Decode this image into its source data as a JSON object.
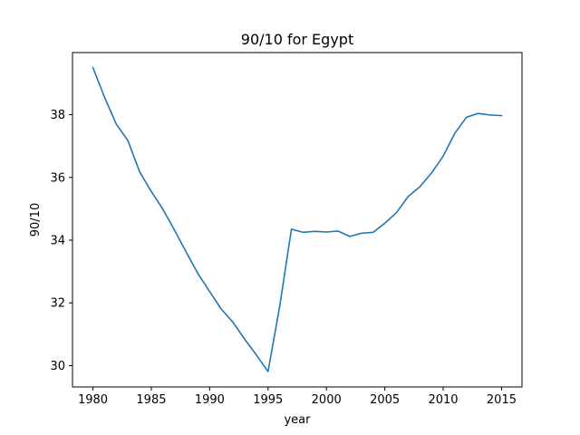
{
  "chart_data": {
    "type": "line",
    "title": "90/10 for Egypt",
    "xlabel": "year",
    "ylabel": "90/10",
    "xlim": [
      1978.25,
      2016.75
    ],
    "ylim": [
      29.32,
      39.98
    ],
    "xticks": [
      1980,
      1985,
      1990,
      1995,
      2000,
      2005,
      2010,
      2015
    ],
    "yticks": [
      30,
      32,
      34,
      36,
      38
    ],
    "grid": false,
    "color": "#1f77b4",
    "series": [
      {
        "x": [
          1980,
          1981,
          1982,
          1983,
          1984,
          1985,
          1986,
          1987,
          1988,
          1989,
          1990,
          1991,
          1992,
          1993,
          1994,
          1995,
          1996,
          1997,
          1998,
          1999,
          2000,
          2001,
          2002,
          2003,
          2004,
          2005,
          2006,
          2007,
          2008,
          2009,
          2010,
          2011,
          2012,
          2013,
          2014,
          2015
        ],
        "values": [
          39.5,
          38.55,
          37.7,
          37.17,
          36.18,
          35.55,
          34.98,
          34.31,
          33.61,
          32.93,
          32.36,
          31.8,
          31.38,
          30.84,
          30.34,
          29.81,
          31.9,
          34.35,
          34.25,
          34.28,
          34.26,
          34.29,
          34.12,
          34.22,
          34.25,
          34.54,
          34.88,
          35.39,
          35.7,
          36.14,
          36.68,
          37.41,
          37.92,
          38.04,
          37.99,
          37.97
        ]
      }
    ]
  }
}
